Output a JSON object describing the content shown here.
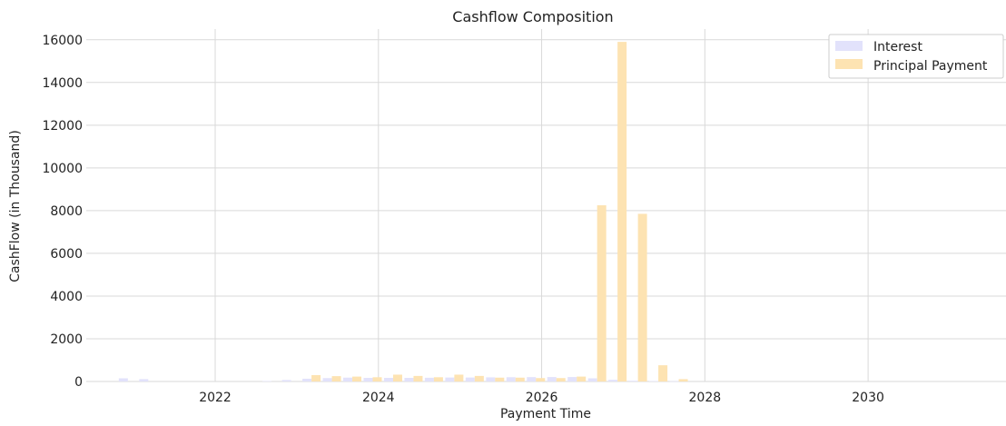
{
  "chart_data": {
    "type": "bar",
    "title": "Cashflow Composition",
    "xlabel": "Payment Time",
    "ylabel": "CashFlow (in Thousand)",
    "xlim": [
      2020.42,
      2031.69
    ],
    "ylim": [
      0,
      16500
    ],
    "x_ticks": [
      2022,
      2024,
      2026,
      2028,
      2030
    ],
    "y_ticks": [
      0,
      2000,
      4000,
      6000,
      8000,
      10000,
      12000,
      14000,
      16000
    ],
    "grid": true,
    "legend_position": "top-right",
    "colors": {
      "Interest": "#e2e2fb",
      "Principal Payment": "#fde3b2"
    },
    "series": [
      {
        "name": "Interest",
        "x": [
          2020.93,
          2021.18,
          2022.69,
          2022.93,
          2023.18,
          2023.43,
          2023.68,
          2023.93,
          2024.18,
          2024.43,
          2024.68,
          2024.93,
          2025.18,
          2025.43,
          2025.68,
          2025.93,
          2026.18,
          2026.43,
          2026.68,
          2026.93,
          2027.18,
          2027.43,
          2027.68
        ],
        "values": [
          150,
          110,
          20,
          70,
          130,
          160,
          180,
          170,
          170,
          170,
          175,
          185,
          185,
          195,
          200,
          205,
          210,
          210,
          150,
          80,
          35,
          20,
          10
        ]
      },
      {
        "name": "Principal Payment",
        "x": [
          2020.93,
          2021.18,
          2022.69,
          2022.93,
          2023.18,
          2023.43,
          2023.68,
          2023.93,
          2024.18,
          2024.43,
          2024.68,
          2024.93,
          2025.18,
          2025.43,
          2025.68,
          2025.93,
          2026.18,
          2026.43,
          2026.68,
          2026.93,
          2027.18,
          2027.43,
          2027.68
        ],
        "values": [
          0,
          0,
          0,
          0,
          300,
          250,
          230,
          200,
          320,
          260,
          200,
          320,
          260,
          180,
          180,
          160,
          160,
          230,
          8250,
          15900,
          7850,
          760,
          110
        ]
      }
    ]
  }
}
